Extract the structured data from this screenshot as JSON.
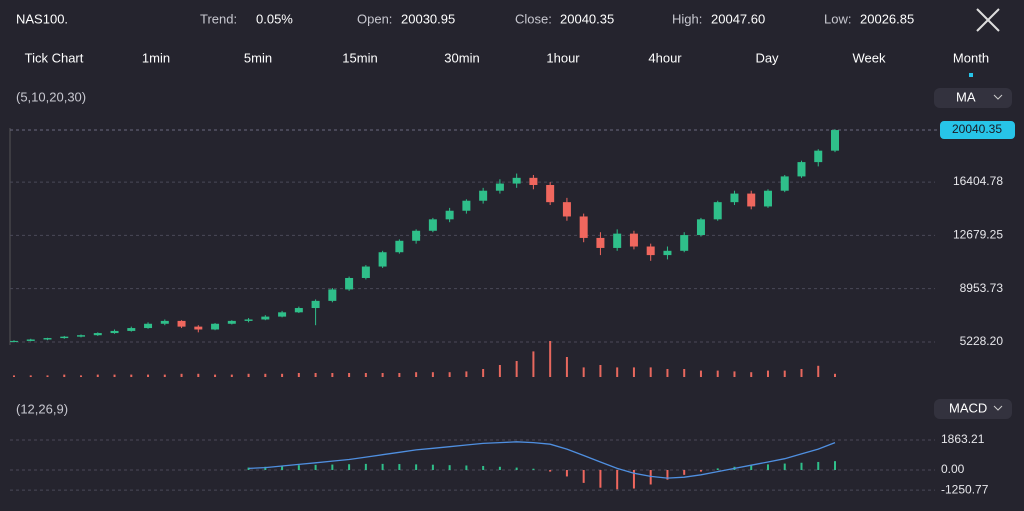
{
  "header": {
    "symbol": "NAS100.",
    "trend_label": "Trend:",
    "trend_value": "0.05%",
    "open_label": "Open:",
    "open": "20030.95",
    "close_label": "Close:",
    "close": "20040.35",
    "high_label": "High:",
    "high": "20047.60",
    "low_label": "Low:",
    "low": "20026.85"
  },
  "timeframes": [
    "Tick Chart",
    "1min",
    "5min",
    "15min",
    "30min",
    "1hour",
    "4hour",
    "Day",
    "Week",
    "Month"
  ],
  "selected_timeframe": 9,
  "price_panel": {
    "params": "(5,10,20,30)",
    "indicator": "MA",
    "ylim": [
      4666,
      20743
    ],
    "yticks": [
      16404.78,
      12679.25,
      8953.73,
      {
        "value": 5228.2,
        "label": "5228.20"
      }
    ],
    "last_price": 20040.35,
    "up_color": "#2fbf8a",
    "down_color": "#f0675e",
    "candles": [
      [
        5250,
        5350,
        5200,
        5300
      ],
      [
        5300,
        5450,
        5280,
        5400
      ],
      [
        5400,
        5520,
        5350,
        5500
      ],
      [
        5500,
        5650,
        5450,
        5600
      ],
      [
        5600,
        5750,
        5550,
        5700
      ],
      [
        5700,
        5900,
        5650,
        5850
      ],
      [
        5850,
        6100,
        5800,
        6000
      ],
      [
        6000,
        6300,
        5950,
        6200
      ],
      [
        6200,
        6600,
        6150,
        6500
      ],
      [
        6500,
        6800,
        6400,
        6700
      ],
      [
        6700,
        6750,
        6200,
        6300
      ],
      [
        6300,
        6400,
        5900,
        6100
      ],
      [
        6100,
        6550,
        6050,
        6500
      ],
      [
        6500,
        6750,
        6450,
        6700
      ],
      [
        6700,
        6900,
        6600,
        6800
      ],
      [
        6800,
        7100,
        6750,
        7000
      ],
      [
        7000,
        7400,
        6950,
        7300
      ],
      [
        7300,
        7700,
        7250,
        7600
      ],
      [
        7600,
        8200,
        6400,
        8100
      ],
      [
        8100,
        9000,
        8000,
        8900
      ],
      [
        8900,
        9800,
        8800,
        9700
      ],
      [
        9700,
        10600,
        9600,
        10500
      ],
      [
        10500,
        11600,
        10400,
        11500
      ],
      [
        11500,
        12400,
        11400,
        12300
      ],
      [
        12300,
        13100,
        12100,
        13000
      ],
      [
        13000,
        13900,
        12900,
        13800
      ],
      [
        13800,
        14600,
        13600,
        14400
      ],
      [
        14400,
        15200,
        14200,
        15100
      ],
      [
        15100,
        16000,
        14900,
        15800
      ],
      [
        15800,
        16600,
        15600,
        16300
      ],
      [
        16300,
        17000,
        16000,
        16700
      ],
      [
        16700,
        16900,
        15900,
        16200
      ],
      [
        16200,
        16400,
        14800,
        15000
      ],
      [
        15000,
        15300,
        13700,
        14000
      ],
      [
        14000,
        14200,
        12200,
        12500
      ],
      [
        12500,
        12900,
        11300,
        11800
      ],
      [
        11800,
        13100,
        11600,
        12800
      ],
      [
        12800,
        13000,
        11700,
        11900
      ],
      [
        11900,
        12100,
        10900,
        11300
      ],
      [
        11300,
        11900,
        11000,
        11600
      ],
      [
        11600,
        12900,
        11500,
        12700
      ],
      [
        12700,
        13900,
        12600,
        13800
      ],
      [
        13800,
        15100,
        13700,
        15000
      ],
      [
        15000,
        15800,
        14800,
        15600
      ],
      [
        15600,
        15800,
        14500,
        14700
      ],
      [
        14700,
        15900,
        14600,
        15800
      ],
      [
        15800,
        16900,
        15700,
        16800
      ],
      [
        16800,
        17900,
        16700,
        17800
      ],
      [
        17800,
        18700,
        17500,
        18600
      ],
      [
        18600,
        20100,
        18500,
        20040.35
      ]
    ],
    "volume": [
      2,
      2,
      2,
      3,
      2,
      3,
      3,
      3,
      3,
      3,
      4,
      4,
      3,
      3,
      4,
      4,
      4,
      5,
      5,
      5,
      5,
      5,
      5,
      5,
      6,
      6,
      6,
      7,
      10,
      15,
      20,
      32,
      45,
      25,
      12,
      15,
      12,
      12,
      12,
      10,
      10,
      8,
      8,
      7,
      6,
      8,
      8,
      10,
      14,
      4
    ]
  },
  "macd_panel": {
    "params": "(12,26,9)",
    "indicator": "MACD",
    "ylim": [
      -1863,
      2112
    ],
    "yticks": [
      1863.21,
      {
        "value": 0,
        "label": "0.00"
      },
      -1250.77
    ],
    "histogram": [
      null,
      null,
      null,
      null,
      null,
      null,
      null,
      null,
      null,
      null,
      null,
      null,
      null,
      null,
      150,
      200,
      250,
      300,
      320,
      340,
      360,
      380,
      380,
      370,
      350,
      330,
      300,
      280,
      250,
      200,
      150,
      80,
      -100,
      -400,
      -800,
      -1100,
      -1200,
      -1150,
      -900,
      -600,
      -300,
      -100,
      100,
      200,
      300,
      350,
      400,
      450,
      500,
      550
    ],
    "dif": [
      null,
      null,
      null,
      null,
      null,
      null,
      null,
      null,
      null,
      null,
      null,
      null,
      null,
      null,
      100,
      150,
      250,
      350,
      450,
      550,
      650,
      800,
      950,
      1100,
      1250,
      1350,
      1450,
      1550,
      1650,
      1700,
      1750,
      1700,
      1600,
      1300,
      900,
      500,
      100,
      -200,
      -400,
      -500,
      -450,
      -300,
      -100,
      100,
      300,
      500,
      700,
      1000,
      1300,
      1700
    ],
    "dif_color": "#4f8fe0"
  }
}
